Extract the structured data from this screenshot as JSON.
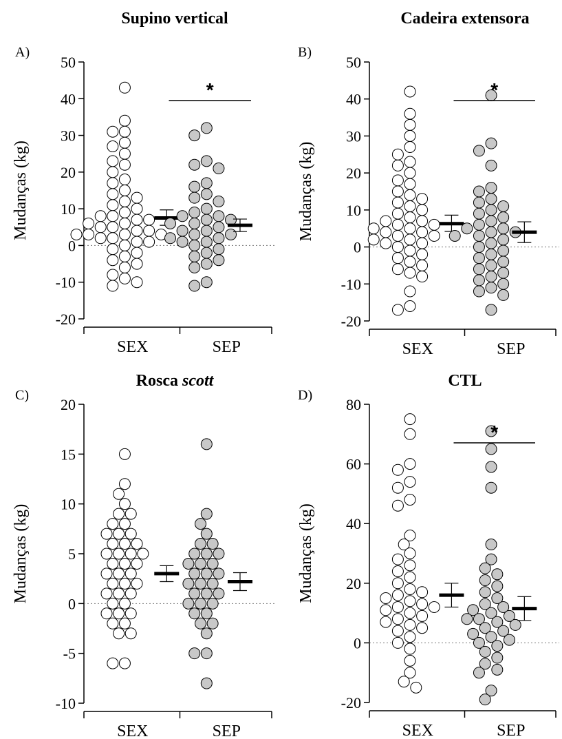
{
  "chart_data": [
    {
      "type": "scatter",
      "panel_label": "A)",
      "title": "Supino vertical",
      "title_italic": "",
      "ylabel": "Mudanças (kg)",
      "ylim": [
        -20,
        50
      ],
      "yticks": [
        -20,
        -10,
        0,
        10,
        20,
        30,
        40,
        50
      ],
      "categories": [
        "SEX",
        "SEP"
      ],
      "significance": {
        "group": "SEP",
        "marker": "*"
      },
      "series": [
        {
          "group": "SEX",
          "fill": "#ffffff",
          "mean": 7.5,
          "ci": [
            5.5,
            9.7
          ],
          "values": [
            43,
            34,
            31,
            31,
            28,
            27,
            25,
            23,
            22,
            20,
            18,
            17,
            15,
            14,
            13,
            12,
            11,
            10,
            9,
            8,
            8,
            7,
            7,
            6,
            6,
            5,
            5,
            4,
            4,
            3,
            3,
            3,
            3,
            2,
            2,
            1,
            1,
            0,
            -1,
            -2,
            -3,
            -4,
            -5,
            -6,
            -8,
            -9,
            -10,
            -11
          ]
        },
        {
          "group": "SEP",
          "fill": "#c8c8c8",
          "mean": 5.5,
          "ci": [
            3.8,
            7.2
          ],
          "values": [
            32,
            30,
            23,
            22,
            21,
            17,
            16,
            14,
            13,
            12,
            10,
            9,
            8,
            8,
            7,
            7,
            6,
            6,
            5,
            4,
            4,
            3,
            3,
            2,
            2,
            1,
            1,
            0,
            -1,
            -2,
            -3,
            -4,
            -5,
            -6,
            -10,
            -11
          ]
        }
      ]
    },
    {
      "type": "scatter",
      "panel_label": "B)",
      "title": "Cadeira extensora",
      "title_italic": "",
      "ylabel": "Mudanças (kg)",
      "ylim": [
        -20,
        50
      ],
      "yticks": [
        -20,
        -10,
        0,
        10,
        20,
        30,
        40,
        50
      ],
      "categories": [
        "SEX",
        "SEP"
      ],
      "significance": {
        "group": "SEP",
        "marker": "*"
      },
      "series": [
        {
          "group": "SEX",
          "fill": "#ffffff",
          "mean": 6.3,
          "ci": [
            4.2,
            8.6
          ],
          "values": [
            42,
            36,
            33,
            30,
            27,
            25,
            23,
            22,
            20,
            18,
            17,
            15,
            14,
            13,
            12,
            11,
            10,
            9,
            8,
            7,
            7,
            6,
            6,
            5,
            5,
            4,
            4,
            3,
            3,
            2,
            2,
            1,
            1,
            0,
            -1,
            -2,
            -3,
            -4,
            -5,
            -6,
            -7,
            -8,
            -12,
            -16,
            -17
          ]
        },
        {
          "group": "SEP",
          "fill": "#c8c8c8",
          "mean": 4.0,
          "ci": [
            1.2,
            6.8
          ],
          "values": [
            41,
            28,
            26,
            22,
            16,
            15,
            13,
            12,
            11,
            10,
            9,
            8,
            7,
            6,
            5,
            5,
            4,
            4,
            3,
            3,
            2,
            1,
            0,
            -1,
            -2,
            -3,
            -4,
            -5,
            -6,
            -7,
            -8,
            -9,
            -10,
            -11,
            -12,
            -13,
            -17
          ]
        }
      ]
    },
    {
      "type": "scatter",
      "panel_label": "C)",
      "title": "Rosca",
      "title_italic": "scott",
      "ylabel": "Mudanças (kg)",
      "ylim": [
        -10,
        20
      ],
      "yticks": [
        -10,
        -5,
        0,
        5,
        10,
        15,
        20
      ],
      "categories": [
        "SEX",
        "SEP"
      ],
      "significance": null,
      "series": [
        {
          "group": "SEX",
          "fill": "#ffffff",
          "mean": 3.0,
          "ci": [
            2.2,
            3.8
          ],
          "values": [
            15,
            12,
            11,
            10,
            9,
            9,
            8,
            8,
            7,
            7,
            7,
            6,
            6,
            6,
            5,
            5,
            5,
            5,
            4,
            4,
            4,
            3,
            3,
            3,
            2,
            2,
            2,
            1,
            1,
            1,
            0,
            0,
            -1,
            -1,
            -1,
            -2,
            -2,
            -3,
            -3,
            -6,
            -6
          ]
        },
        {
          "group": "SEP",
          "fill": "#c8c8c8",
          "mean": 2.2,
          "ci": [
            1.3,
            3.1
          ],
          "values": [
            16,
            9,
            8,
            7,
            6,
            6,
            5,
            5,
            5,
            4,
            4,
            4,
            3,
            3,
            3,
            2,
            2,
            2,
            1,
            1,
            1,
            0,
            0,
            0,
            -1,
            -1,
            -2,
            -2,
            -3,
            -5,
            -5,
            -8
          ]
        }
      ]
    },
    {
      "type": "scatter",
      "panel_label": "D)",
      "title": "CTL",
      "title_italic": "",
      "ylabel": "Mudanças (kg)",
      "ylim": [
        -20,
        80
      ],
      "yticks": [
        -20,
        0,
        20,
        40,
        60,
        80
      ],
      "categories": [
        "SEX",
        "SEP"
      ],
      "significance": {
        "group": "SEP",
        "marker": "*"
      },
      "series": [
        {
          "group": "SEX",
          "fill": "#ffffff",
          "mean": 16,
          "ci": [
            12,
            20
          ],
          "values": [
            75,
            70,
            60,
            58,
            54,
            52,
            48,
            46,
            36,
            33,
            30,
            28,
            26,
            24,
            22,
            20,
            18,
            17,
            16,
            15,
            14,
            13,
            12,
            12,
            11,
            10,
            9,
            8,
            7,
            6,
            5,
            4,
            2,
            0,
            -2,
            -6,
            -10,
            -13,
            -15
          ]
        },
        {
          "group": "SEP",
          "fill": "#c8c8c8",
          "mean": 11.5,
          "ci": [
            7.5,
            15.5
          ],
          "values": [
            71,
            65,
            59,
            52,
            33,
            28,
            25,
            23,
            21,
            19,
            17,
            15,
            13,
            12,
            11,
            10,
            9,
            8,
            8,
            7,
            6,
            5,
            4,
            3,
            2,
            1,
            0,
            -1,
            -3,
            -5,
            -7,
            -9,
            -10,
            -16,
            -19
          ]
        }
      ]
    }
  ]
}
